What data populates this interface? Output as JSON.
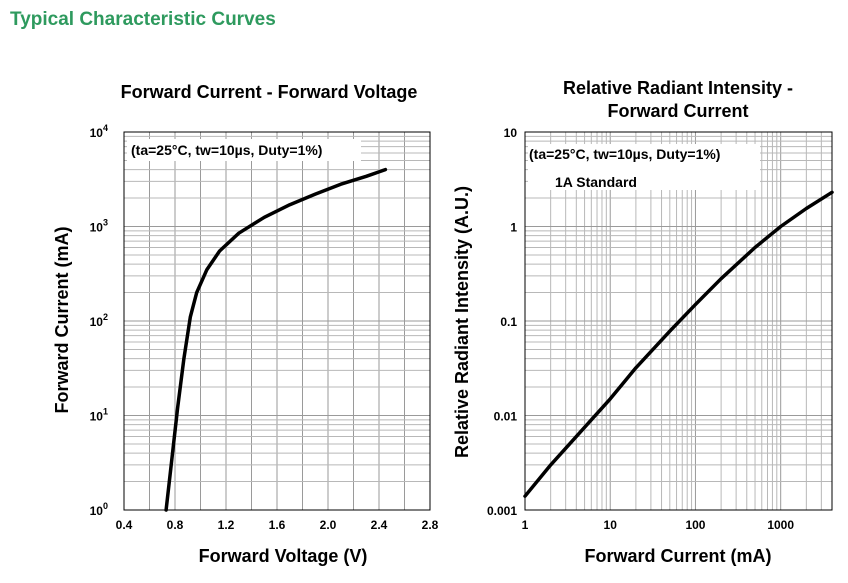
{
  "page": {
    "heading": "Typical Characteristic Curves"
  },
  "chart_data": [
    {
      "type": "line",
      "title": "Forward Current - Forward Voltage",
      "xlabel": "Forward Voltage (V)",
      "ylabel": "Forward Current (mA)",
      "xlim": [
        0.4,
        2.8
      ],
      "ylim": [
        1,
        10000
      ],
      "yscale": "log",
      "grid": true,
      "x_ticks": [
        "0.4",
        "0.8",
        "1.2",
        "1.6",
        "2.0",
        "2.4",
        "2.8"
      ],
      "y_ticks": [
        {
          "base": "10",
          "exp": "0"
        },
        {
          "base": "10",
          "exp": "1"
        },
        {
          "base": "10",
          "exp": "2"
        },
        {
          "base": "10",
          "exp": "3"
        },
        {
          "base": "10",
          "exp": "4"
        }
      ],
      "annotations": [
        "(ta=25°C, tw=10µs, Duty=1%)"
      ],
      "series": [
        {
          "color": "#000000",
          "x": [
            0.73,
            0.77,
            0.82,
            0.87,
            0.92,
            0.97,
            1.05,
            1.15,
            1.3,
            1.5,
            1.7,
            1.9,
            2.1,
            2.3,
            2.45
          ],
          "y": [
            1,
            3,
            12,
            40,
            110,
            200,
            350,
            550,
            850,
            1250,
            1700,
            2200,
            2800,
            3400,
            4000
          ]
        }
      ]
    },
    {
      "type": "line",
      "title": "Relative Radiant Intensity - Forward Current",
      "title_lines": [
        "Relative Radiant Intensity -",
        "Forward Current"
      ],
      "xlabel": "Forward Current (mA)",
      "ylabel": "Relative Radiant Intensity (A.U.)",
      "xlim": [
        1,
        4000
      ],
      "ylim": [
        0.001,
        10
      ],
      "xscale": "log",
      "yscale": "log",
      "grid": true,
      "x_ticks": [
        "1",
        "10",
        "100",
        "1000"
      ],
      "y_ticks": [
        "0.001",
        "0.01",
        "0.1",
        "1",
        "10"
      ],
      "annotations": [
        "(ta=25°C, tw=10µs, Duty=1%)",
        "1A Standard"
      ],
      "series": [
        {
          "color": "#000000",
          "x": [
            1,
            2,
            5,
            10,
            20,
            50,
            100,
            200,
            500,
            1000,
            2000,
            4000
          ],
          "y": [
            0.0014,
            0.003,
            0.0075,
            0.015,
            0.032,
            0.078,
            0.15,
            0.28,
            0.6,
            1.0,
            1.55,
            2.3
          ]
        }
      ]
    }
  ]
}
